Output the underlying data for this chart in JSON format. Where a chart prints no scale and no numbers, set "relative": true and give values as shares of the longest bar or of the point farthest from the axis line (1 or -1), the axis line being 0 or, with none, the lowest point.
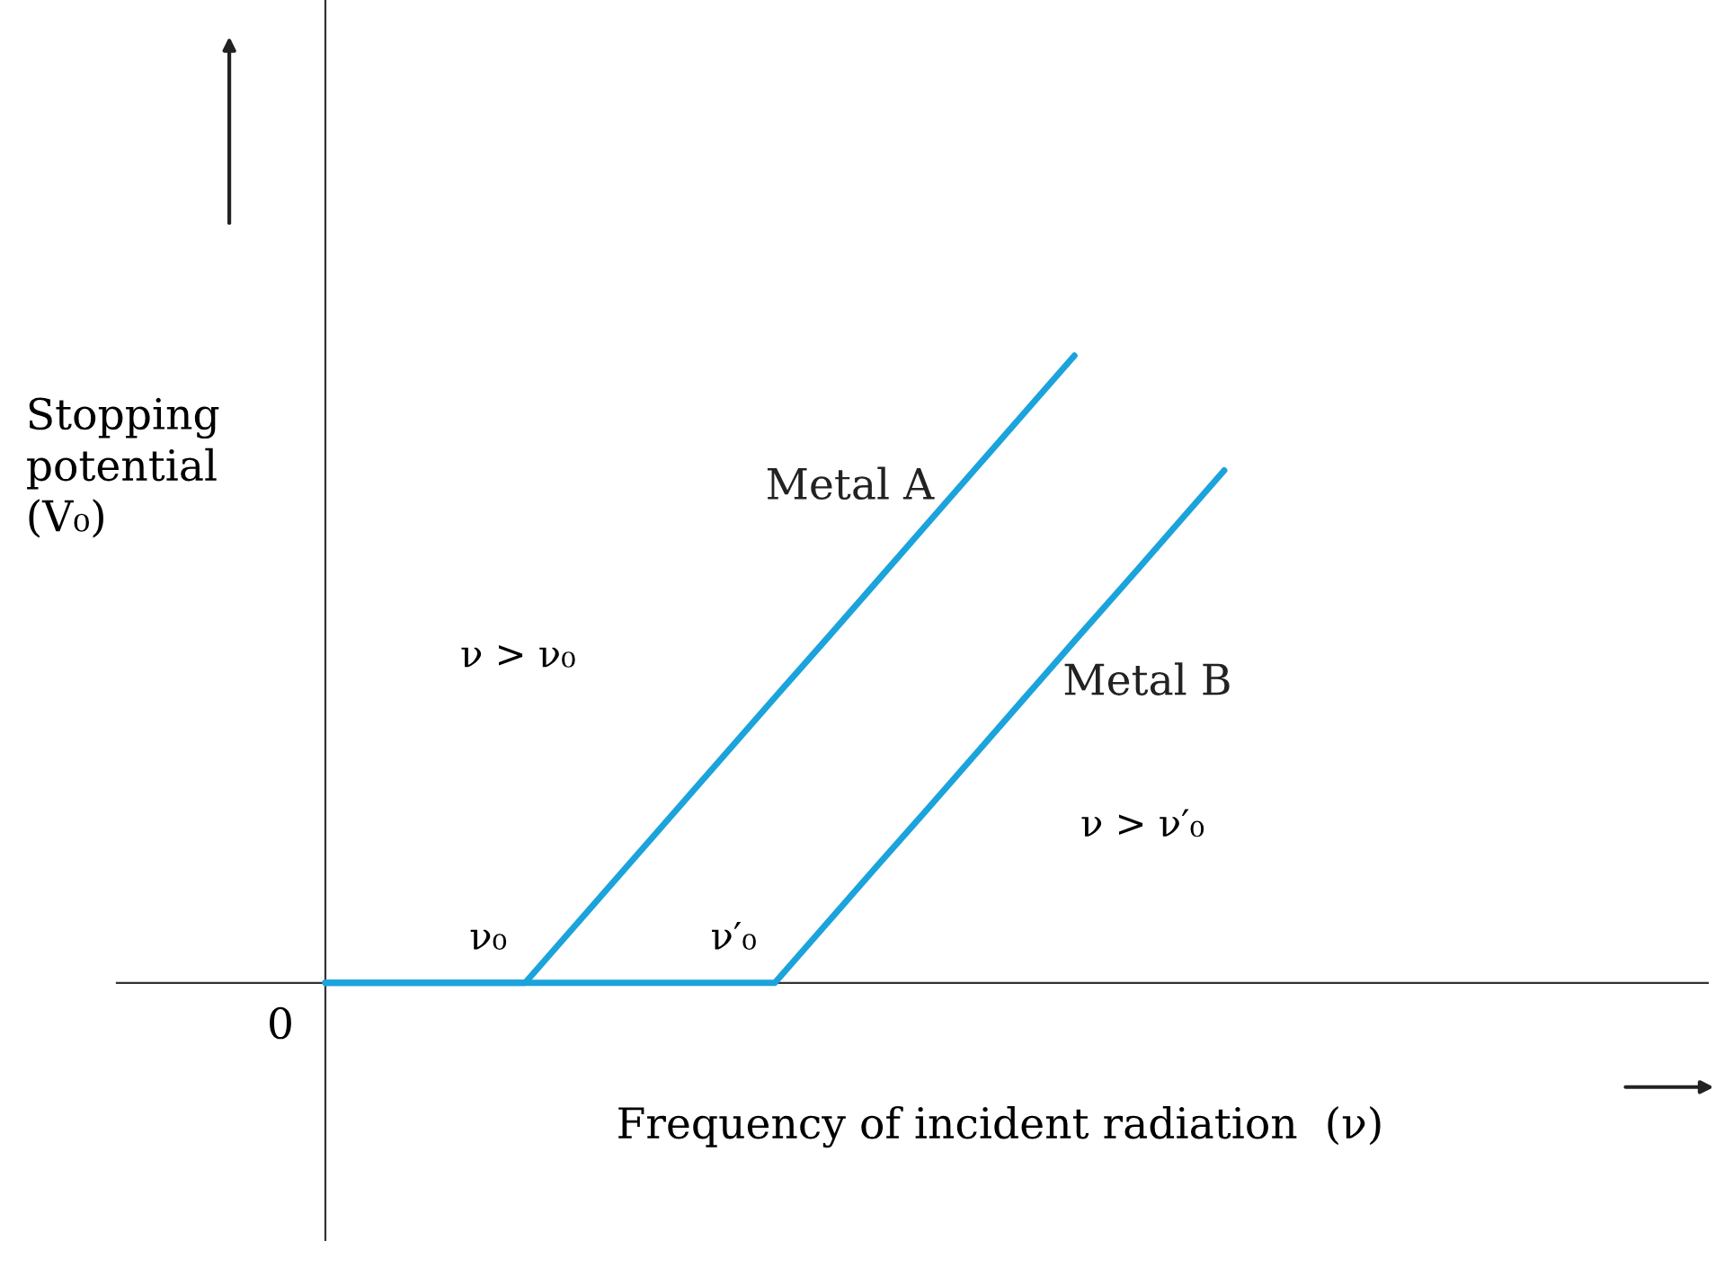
{
  "chart_data": {
    "type": "line",
    "relative": true,
    "xlabel": "Frequency of incident radiation  (ν)",
    "ylabel": "Stopping potential (V₀)",
    "categories": [
      null,
      null,
      null,
      null,
      null,
      null,
      null,
      null,
      null,
      null,
      null,
      null,
      null,
      null,
      null,
      null,
      null,
      null,
      null
    ],
    "series": [
      {
        "name": "Metal A",
        "color": "#1ba3dc",
        "values": [
          0,
          0,
          0,
          0,
          0,
          0.091,
          0.182,
          0.273,
          0.364,
          0.455,
          0.545,
          0.636,
          0.727,
          0.818,
          0.909,
          1,
          null,
          null,
          null
        ]
      },
      {
        "name": "Metal B",
        "color": "#1ba3dc",
        "values": [
          0,
          0,
          0,
          0,
          0,
          0,
          0,
          0,
          0,
          0,
          0.091,
          0.182,
          0.272,
          0.363,
          0.454,
          0.545,
          0.635,
          0.726,
          0.817
        ]
      }
    ],
    "annotations": [
      "0",
      "ν > ν₀",
      "ν > ν′₀",
      "ν₀",
      "ν′₀"
    ],
    "legend": false,
    "grid": false,
    "marker": "none",
    "line_style": "solid"
  }
}
